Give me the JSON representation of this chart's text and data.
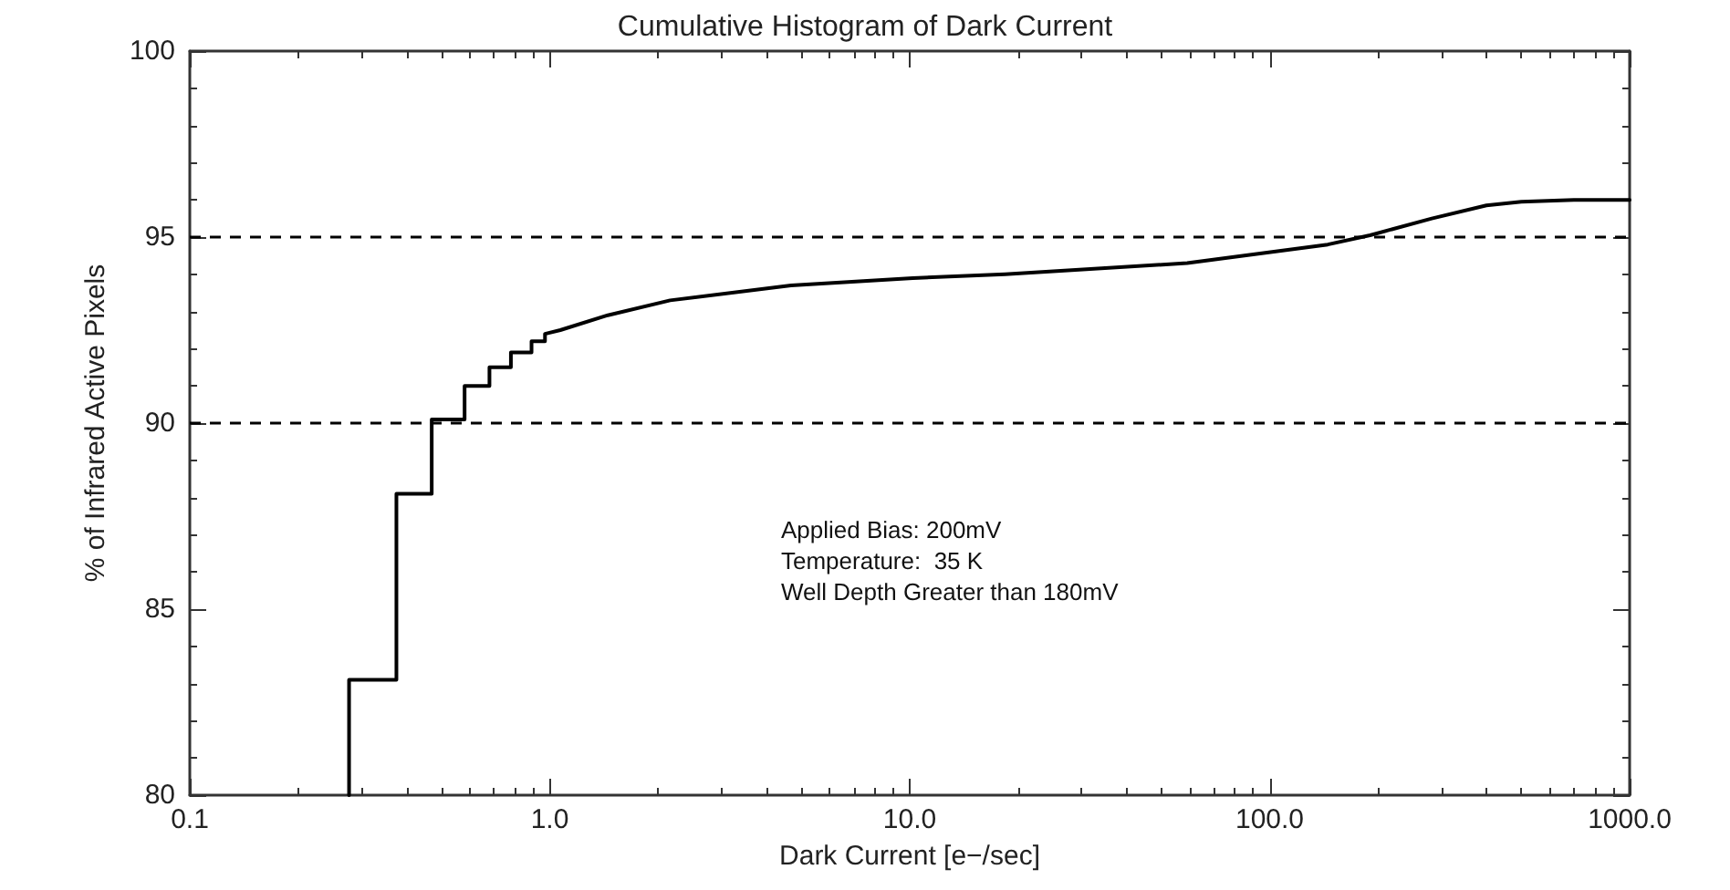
{
  "chart_data": {
    "type": "line",
    "title": "Cumulative Histogram of Dark Current",
    "xlabel": "Dark Current [e−/sec]",
    "ylabel": "% of Infrared Active Pixels",
    "annotations": [
      "Applied Bias: 200mV",
      "Temperature:  35 K",
      "Well Depth Greater than 180mV"
    ],
    "log": "x",
    "xlim": [
      0.1,
      1000
    ],
    "ylim": [
      80,
      100
    ],
    "xticks": [
      0.1,
      {
        "value": 1,
        "label": "1.0"
      },
      {
        "value": 10,
        "label": "10.0"
      },
      {
        "value": 100,
        "label": "100.0"
      },
      {
        "value": 1000,
        "label": "1000.0"
      }
    ],
    "yticks": [
      80,
      85,
      90,
      95,
      100
    ],
    "marker": "none",
    "line_style": "solid",
    "ref_lines": [
      {
        "axis": "y",
        "value": 90,
        "color": "#000000",
        "line_style": "dashed"
      },
      {
        "axis": "y",
        "value": 95,
        "color": "#000000",
        "line_style": "dashed"
      }
    ],
    "series": [
      {
        "color": "#000000",
        "x": [
          0.277,
          0.277,
          0.375,
          0.375,
          0.47,
          0.47,
          0.58,
          0.58,
          0.68,
          0.68,
          0.78,
          0.78,
          0.89,
          0.89,
          0.97,
          0.97,
          1.07,
          1.45,
          2.16,
          4.68,
          10.2,
          18.4,
          59,
          145,
          190,
          282,
          400,
          500,
          700,
          1000
        ],
        "values": [
          80,
          83.1,
          83.1,
          88.1,
          88.1,
          90.1,
          90.1,
          91.0,
          91.0,
          91.5,
          91.5,
          91.9,
          91.9,
          92.2,
          92.2,
          92.4,
          92.5,
          92.9,
          93.3,
          93.7,
          93.9,
          94.0,
          94.3,
          94.8,
          95.05,
          95.5,
          95.85,
          95.95,
          96.0,
          96.0
        ]
      }
    ]
  }
}
